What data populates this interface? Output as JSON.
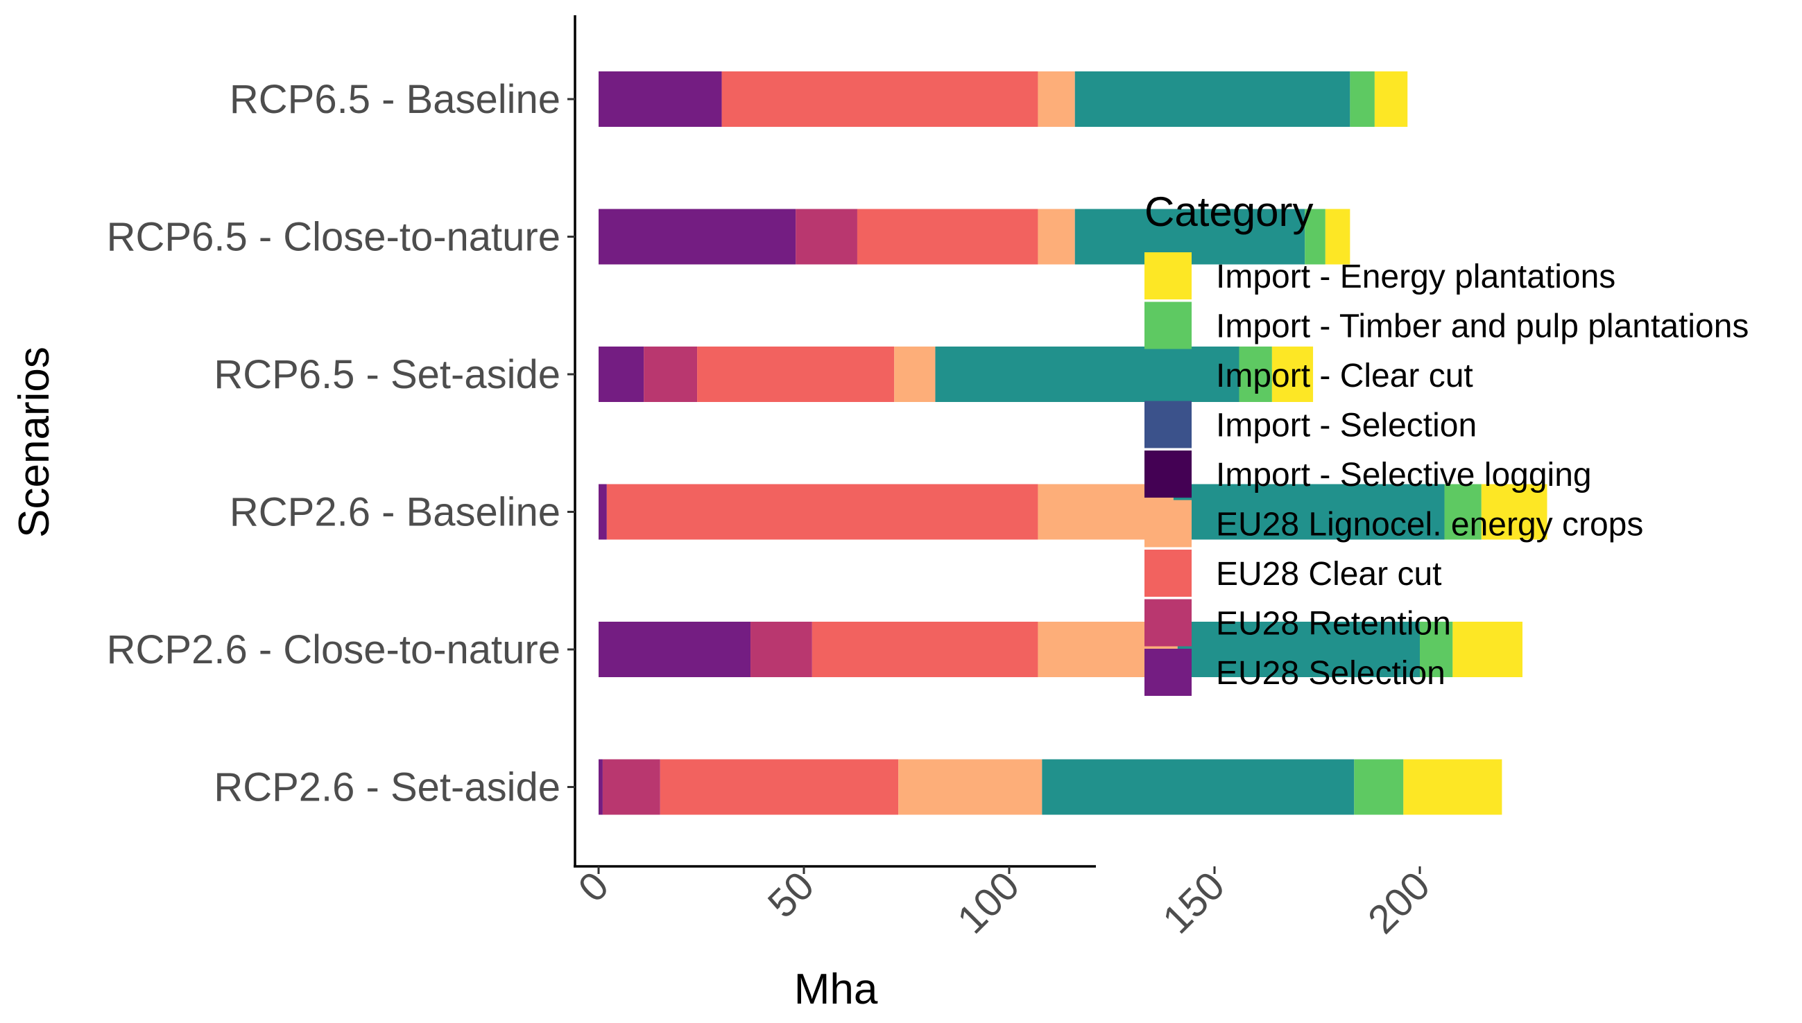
{
  "chart_data": {
    "type": "bar",
    "orientation": "horizontal",
    "stacked": true,
    "title": "",
    "xlabel": "Mha",
    "ylabel": "Scenarios",
    "xlim": [
      0,
      240
    ],
    "xticks": [
      0,
      50,
      100,
      150,
      200
    ],
    "xtick_rotation": -45,
    "grid": false,
    "legend_placement": "right",
    "legend_title": "Category",
    "categories": [
      "RCP6.5 - Baseline",
      "RCP6.5 - Close-to-nature",
      "RCP6.5 - Set-aside",
      "RCP2.6 - Baseline",
      "RCP2.6 - Close-to-nature",
      "RCP2.6 - Set-aside"
    ],
    "series": [
      {
        "name": "EU28 Selection",
        "color": "#741d82",
        "values": [
          30,
          48,
          11,
          2,
          37,
          1
        ]
      },
      {
        "name": "EU28 Retention",
        "color": "#b9376f",
        "values": [
          0,
          15,
          13,
          0,
          15,
          14
        ]
      },
      {
        "name": "EU28 Clear cut",
        "color": "#f2625f",
        "values": [
          77,
          44,
          48,
          105,
          55,
          58
        ]
      },
      {
        "name": "EU28 Lignocel. energy crops",
        "color": "#fdae79",
        "values": [
          9,
          9,
          10,
          33,
          34,
          35
        ]
      },
      {
        "name": "Import - Selective logging",
        "color": "#440154",
        "values": [
          0,
          0,
          0,
          0,
          0,
          0
        ]
      },
      {
        "name": "Import - Selection",
        "color": "#3b528b",
        "values": [
          0,
          0,
          0,
          0,
          0,
          0
        ]
      },
      {
        "name": "Import - Clear cut",
        "color": "#21918c",
        "values": [
          67,
          56,
          74,
          66,
          59,
          76
        ]
      },
      {
        "name": "Import - Timber and pulp plantations",
        "color": "#5ec962",
        "values": [
          6,
          5,
          8,
          9,
          8,
          12
        ]
      },
      {
        "name": "Import - Energy plantations",
        "color": "#fde725",
        "values": [
          8,
          6,
          10,
          16,
          17,
          24
        ]
      }
    ]
  }
}
